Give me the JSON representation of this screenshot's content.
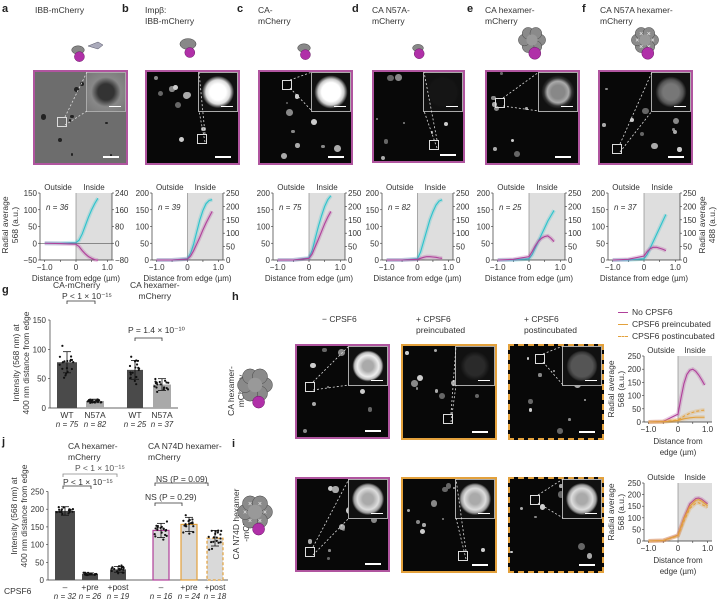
{
  "panels": {
    "a": {
      "letter": "a",
      "title": "IBB-mCherry",
      "n": "n = 36"
    },
    "b": {
      "letter": "b",
      "title": "Impβ:\nIBB-mCherry",
      "n": "n = 39"
    },
    "c": {
      "letter": "c",
      "title": "CA-\nmCherry",
      "n": "n = 75"
    },
    "d": {
      "letter": "d",
      "title": "CA N57A-\nmCherry",
      "n": "n = 82"
    },
    "e": {
      "letter": "e",
      "title": "CA hexamer-\nmCherry",
      "n": "n = 25"
    },
    "f": {
      "letter": "f",
      "title": "CA N57A hexamer-\nmCherry",
      "n": "n = 37"
    },
    "g": {
      "letter": "g",
      "group1": "CA-mCherry",
      "group2": "CA hexamer-\nmCherry",
      "p1": "P < 1 × 10⁻¹⁵",
      "p2": "P = 1.4 × 10⁻¹⁰",
      "ylabel": "Intensity (568 nm) at\n400 nm distance from edge"
    },
    "h": {
      "letter": "h",
      "col1": "− CPSF6",
      "col2": "+ CPSF6\npreincubated",
      "col3": "+ CPSF6\npostincubated",
      "row_label": "CA hexamer-\nmCherry"
    },
    "i": {
      "letter": "i",
      "row_label": "CA N74D hexamer\n-mCherry"
    },
    "j": {
      "letter": "j",
      "group1": "CA hexamer-\nmCherry",
      "group2": "CA N74D hexamer-\nmCherry",
      "p_wide": "P < 1 × 10⁻¹⁵",
      "p_narrow": "P < 1 × 10⁻¹⁵",
      "ns1": "NS (P = 0.09)",
      "ns2": "NS (P = 0.29)",
      "row_title": "CPSF6",
      "ylabel": "Intensity (568 nm) at\n400 nm distance from edge"
    }
  },
  "common": {
    "outside": "Outside",
    "inside": "Inside",
    "xlabel": "Distance from edge (µm)",
    "xlabel_small": "Distance from\nedge (µm)",
    "ylabel_left": "Radial average\n568 (a.u.)",
    "ylabel_right": "Radial average\n488 (a.u.)"
  },
  "legend": [
    {
      "label": "No CPSF6",
      "color": "#b0409a",
      "dash": false
    },
    {
      "label": "CPSF6 preincubated",
      "color": "#e3a13c",
      "dash": false
    },
    {
      "label": "CPSF6 postincubated",
      "color": "#e3a13c",
      "dash": true
    }
  ],
  "colors": {
    "cyan": "#2cc3cc",
    "magenta": "#b0409a",
    "orange": "#e3a13c",
    "shade": "#dedede",
    "dark_bar": "#4a4a4a",
    "light_bar": "#a9a9a9",
    "n74d_bar": "#d9d9d9"
  },
  "chart_data": [
    {
      "id": "a",
      "type": "line",
      "xlabel": "Distance from edge (µm)",
      "ylabel": "Radial average 568 (a.u.)",
      "xlim": [
        -1.0,
        1.0
      ],
      "xticks": [
        "-1.0",
        "0",
        "1.0"
      ],
      "ylim_left": [
        -50,
        150
      ],
      "yticks_left": [
        -50,
        0,
        50,
        100,
        150
      ],
      "ylim_right": [
        -80,
        240
      ],
      "yticks_right": [
        -80,
        0,
        80,
        160,
        240
      ],
      "series": [
        {
          "axis": "right",
          "color": "#2cc3cc",
          "x": [
            -1,
            -0.5,
            0,
            0.1,
            0.2,
            0.3,
            0.4,
            0.5,
            0.6,
            0.7
          ],
          "y": [
            0,
            0,
            3,
            15,
            45,
            85,
            125,
            160,
            190,
            215
          ]
        },
        {
          "axis": "left",
          "color": "#b0409a",
          "x": [
            -1,
            -0.5,
            0,
            0.1,
            0.2,
            0.3,
            0.4,
            0.5,
            0.6,
            0.7
          ],
          "y": [
            0,
            -1,
            -3,
            -10,
            -22,
            -32,
            -40,
            -45,
            -49,
            -51
          ]
        }
      ]
    },
    {
      "id": "b",
      "type": "line",
      "xlim": [
        -1.0,
        1.0
      ],
      "xticks": [
        "-1.0",
        "0",
        "1.0"
      ],
      "ylim_left": [
        0,
        200
      ],
      "yticks_left": [
        0,
        50,
        100,
        150,
        200
      ],
      "ylim_right": [
        0,
        250
      ],
      "yticks_right": [
        0,
        50,
        100,
        150,
        200,
        250
      ],
      "series": [
        {
          "axis": "right",
          "color": "#2cc3cc",
          "x": [
            -1,
            -0.5,
            0,
            0.1,
            0.2,
            0.3,
            0.4,
            0.5,
            0.6,
            0.7,
            0.8
          ],
          "y": [
            0,
            0,
            5,
            25,
            60,
            105,
            150,
            185,
            210,
            222,
            225
          ]
        },
        {
          "axis": "left",
          "color": "#b0409a",
          "x": [
            -1,
            -0.5,
            0,
            0.1,
            0.2,
            0.3,
            0.4,
            0.5,
            0.6,
            0.7,
            0.8
          ],
          "y": [
            0,
            0,
            3,
            12,
            28,
            48,
            68,
            90,
            110,
            128,
            145
          ]
        }
      ]
    },
    {
      "id": "c",
      "type": "line",
      "xlim": [
        -1.0,
        1.0
      ],
      "xticks": [
        "-1.0",
        "0",
        "1.0"
      ],
      "ylim_left": [
        0,
        200
      ],
      "yticks_left": [
        0,
        50,
        100,
        150,
        200
      ],
      "ylim_right": [
        0,
        250
      ],
      "yticks_right": [
        0,
        50,
        100,
        150,
        200,
        250
      ],
      "series": [
        {
          "axis": "right",
          "color": "#2cc3cc",
          "x": [
            -1,
            -0.5,
            0,
            0.1,
            0.2,
            0.3,
            0.4,
            0.5,
            0.6,
            0.7
          ],
          "y": [
            0,
            0,
            8,
            35,
            80,
            125,
            165,
            200,
            225,
            240
          ]
        },
        {
          "axis": "left",
          "color": "#b0409a",
          "x": [
            -1,
            -0.5,
            0,
            0.1,
            0.2,
            0.3,
            0.4,
            0.5,
            0.6,
            0.7
          ],
          "y": [
            0,
            0,
            5,
            18,
            40,
            62,
            85,
            108,
            128,
            145
          ]
        }
      ]
    },
    {
      "id": "d",
      "type": "line",
      "xlim": [
        -1.0,
        1.0
      ],
      "xticks": [
        "-1.0",
        "0",
        "1.0"
      ],
      "ylim_left": [
        0,
        200
      ],
      "yticks_left": [
        0,
        50,
        100,
        150,
        200
      ],
      "ylim_right": [
        0,
        250
      ],
      "yticks_right": [
        0,
        50,
        100,
        150,
        200,
        250
      ],
      "series": [
        {
          "axis": "right",
          "color": "#2cc3cc",
          "x": [
            -1,
            -0.5,
            0,
            0.1,
            0.2,
            0.3,
            0.4,
            0.5,
            0.6,
            0.7,
            0.8
          ],
          "y": [
            0,
            0,
            5,
            30,
            70,
            110,
            150,
            180,
            205,
            220,
            225
          ]
        },
        {
          "axis": "left",
          "color": "#b0409a",
          "x": [
            -1,
            -0.5,
            0,
            0.1,
            0.2,
            0.3,
            0.4,
            0.5,
            0.6,
            0.7,
            0.8
          ],
          "y": [
            0,
            0,
            2,
            5,
            8,
            10,
            10,
            9,
            8,
            6,
            5
          ]
        }
      ]
    },
    {
      "id": "e",
      "type": "line",
      "xlim": [
        -1.0,
        1.0
      ],
      "xticks": [
        "-1.0",
        "0",
        "1.0"
      ],
      "ylim_left": [
        0,
        200
      ],
      "yticks_left": [
        0,
        50,
        100,
        150,
        200
      ],
      "ylim_right": [
        0,
        250
      ],
      "yticks_right": [
        0,
        50,
        100,
        150,
        200,
        250
      ],
      "series": [
        {
          "axis": "right",
          "color": "#2cc3cc",
          "x": [
            -1,
            -0.5,
            0,
            0.1,
            0.2,
            0.3,
            0.4,
            0.5,
            0.6,
            0.7,
            0.8
          ],
          "y": [
            0,
            0,
            5,
            20,
            45,
            70,
            95,
            120,
            145,
            165,
            185
          ]
        },
        {
          "axis": "left",
          "color": "#b0409a",
          "x": [
            -1,
            -0.5,
            0,
            0.1,
            0.2,
            0.3,
            0.4,
            0.5,
            0.6,
            0.7,
            0.8
          ],
          "y": [
            0,
            2,
            10,
            25,
            42,
            56,
            65,
            70,
            72,
            65,
            55
          ]
        }
      ]
    },
    {
      "id": "f",
      "type": "line",
      "ylabel_right": "Radial average 488 (a.u.)",
      "xlim": [
        -1.0,
        1.0
      ],
      "xticks": [
        "-1.0",
        "0",
        "1.0"
      ],
      "ylim_left": [
        0,
        200
      ],
      "yticks_left": [
        0,
        50,
        100,
        150,
        200
      ],
      "ylim_right": [
        0,
        250
      ],
      "yticks_right": [
        0,
        50,
        100,
        150,
        200,
        250
      ],
      "series": [
        {
          "axis": "right",
          "color": "#2cc3cc",
          "x": [
            -1,
            -0.5,
            0,
            0.1,
            0.2,
            0.3,
            0.4,
            0.5,
            0.6,
            0.7
          ],
          "y": [
            0,
            0,
            5,
            20,
            45,
            70,
            95,
            120,
            145,
            170
          ]
        },
        {
          "axis": "left",
          "color": "#b0409a",
          "x": [
            -1,
            -0.5,
            0,
            0.1,
            0.2,
            0.3,
            0.4,
            0.5,
            0.6,
            0.7
          ],
          "y": [
            0,
            2,
            12,
            25,
            34,
            38,
            38,
            35,
            32,
            28
          ]
        }
      ]
    },
    {
      "id": "g",
      "type": "bar",
      "ylabel": "Intensity (568 nm) at 400 nm distance from edge",
      "ylim": [
        0,
        150
      ],
      "yticks": [
        0,
        50,
        100,
        150
      ],
      "categories": [
        "WT",
        "N57A",
        "WT",
        "N57A"
      ],
      "n": [
        "n = 75",
        "n = 82",
        "n = 25",
        "n = 37"
      ],
      "values": [
        78,
        12,
        65,
        40
      ],
      "errors": [
        18,
        3,
        16,
        10
      ]
    },
    {
      "id": "h",
      "type": "line",
      "xlabel": "Distance from edge (µm)",
      "ylabel": "Radial average 568 (a.u.)",
      "xlim": [
        -1.0,
        1.0
      ],
      "xticks": [
        "-1.0",
        "0",
        "1.0"
      ],
      "ylim_left": [
        0,
        250
      ],
      "yticks_left": [
        0,
        50,
        100,
        150,
        200,
        250
      ],
      "series": [
        {
          "name": "No CPSF6",
          "axis": "left",
          "color": "#b0409a",
          "x": [
            -1,
            -0.5,
            0,
            0.1,
            0.2,
            0.3,
            0.4,
            0.5,
            0.6,
            0.7,
            0.8,
            0.9
          ],
          "y": [
            0,
            2,
            30,
            90,
            145,
            180,
            196,
            200,
            192,
            178,
            160,
            140
          ]
        },
        {
          "name": "CPSF6 preincubated",
          "axis": "left",
          "color": "#e3a13c",
          "x": [
            -1,
            -0.5,
            0,
            0.2,
            0.4,
            0.6,
            0.8,
            0.9
          ],
          "y": [
            0,
            1,
            6,
            12,
            16,
            18,
            18,
            18
          ]
        },
        {
          "name": "CPSF6 postincubated",
          "axis": "left",
          "color": "#e3a13c",
          "dash": true,
          "x": [
            -1,
            -0.5,
            0,
            0.2,
            0.4,
            0.6,
            0.8,
            0.9
          ],
          "y": [
            0,
            1,
            8,
            22,
            33,
            40,
            44,
            45
          ]
        }
      ]
    },
    {
      "id": "i",
      "type": "line",
      "xlabel": "Distance from edge (µm)",
      "ylabel": "Radial average 568 (a.u.)",
      "xlim": [
        -1.0,
        1.0
      ],
      "xticks": [
        "-1.0",
        "0",
        "1.0"
      ],
      "ylim_left": [
        0,
        250
      ],
      "yticks_left": [
        0,
        50,
        100,
        150,
        200,
        250
      ],
      "series": [
        {
          "axis": "left",
          "color": "#b0409a",
          "x": [
            -1,
            -0.5,
            0,
            0.2,
            0.4,
            0.6,
            0.7,
            0.8,
            1.0
          ],
          "y": [
            0,
            2,
            25,
            100,
            160,
            183,
            185,
            180,
            160
          ]
        },
        {
          "axis": "left",
          "color": "#e3a13c",
          "x": [
            -1,
            -0.5,
            0,
            0.2,
            0.4,
            0.6,
            0.7,
            0.8,
            1.0
          ],
          "y": [
            0,
            2,
            24,
            95,
            150,
            175,
            178,
            172,
            152
          ]
        },
        {
          "axis": "left",
          "color": "#e3a13c",
          "dash": true,
          "x": [
            -1,
            -0.5,
            0,
            0.2,
            0.4,
            0.6,
            0.7,
            0.8,
            1.0
          ],
          "y": [
            0,
            2,
            22,
            85,
            140,
            163,
            165,
            158,
            145
          ]
        }
      ]
    },
    {
      "id": "j",
      "type": "bar",
      "ylabel": "Intensity (568 nm) at 400 nm distance from edge",
      "ylim": [
        0,
        250
      ],
      "yticks": [
        0,
        50,
        100,
        150,
        200,
        250
      ],
      "categories": [
        "–",
        "+pre",
        "+post",
        "–",
        "+pre",
        "+post"
      ],
      "n": [
        "n = 32",
        "n = 26",
        "n = 19",
        "n = 16",
        "n = 24",
        "n = 18"
      ],
      "values": [
        195,
        17,
        30,
        140,
        157,
        118
      ],
      "errors": [
        12,
        3,
        8,
        20,
        20,
        22
      ]
    }
  ]
}
